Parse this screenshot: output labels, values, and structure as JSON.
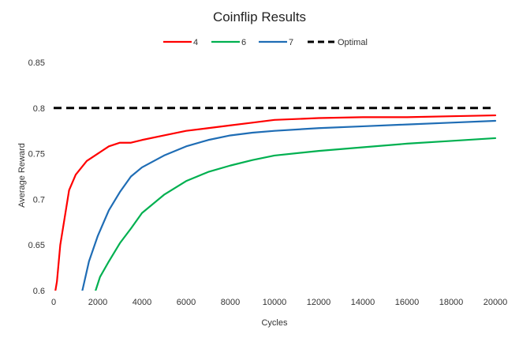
{
  "chart_data": {
    "type": "line",
    "title": "Coinflip Results",
    "xlabel": "Cycles",
    "ylabel": "Average Reward",
    "xlim": [
      0,
      20000
    ],
    "ylim": [
      0.6,
      0.85
    ],
    "x_ticks": [
      0,
      2000,
      4000,
      6000,
      8000,
      10000,
      12000,
      14000,
      16000,
      18000,
      20000
    ],
    "y_ticks": [
      0.6,
      0.65,
      0.7,
      0.75,
      0.8,
      0.85
    ],
    "y_tick_labels": [
      "0.6",
      "0.65",
      "0.7",
      "0.75",
      "0.8",
      "0.85"
    ],
    "grid": false,
    "legend_position": "top",
    "series": [
      {
        "name": "4",
        "color": "#ff0000",
        "x": [
          80,
          150,
          300,
          500,
          700,
          1000,
          1500,
          2000,
          2500,
          3000,
          3500,
          4000,
          5000,
          6000,
          7000,
          8000,
          9000,
          10000,
          12000,
          14000,
          16000,
          18000,
          20000
        ],
        "y": [
          0.6,
          0.61,
          0.65,
          0.68,
          0.71,
          0.727,
          0.742,
          0.75,
          0.758,
          0.762,
          0.762,
          0.765,
          0.77,
          0.775,
          0.778,
          0.781,
          0.784,
          0.787,
          0.789,
          0.79,
          0.79,
          0.791,
          0.792
        ]
      },
      {
        "name": "6",
        "color": "#00b050",
        "x": [
          1900,
          2100,
          2500,
          3000,
          3500,
          4000,
          5000,
          6000,
          7000,
          8000,
          9000,
          10000,
          12000,
          14000,
          16000,
          18000,
          20000
        ],
        "y": [
          0.6,
          0.615,
          0.632,
          0.652,
          0.668,
          0.685,
          0.705,
          0.72,
          0.73,
          0.737,
          0.743,
          0.748,
          0.753,
          0.757,
          0.761,
          0.764,
          0.767
        ]
      },
      {
        "name": "7",
        "color": "#1f6db5",
        "x": [
          1300,
          1600,
          2000,
          2500,
          3000,
          3500,
          4000,
          5000,
          6000,
          7000,
          8000,
          9000,
          10000,
          12000,
          14000,
          16000,
          18000,
          20000
        ],
        "y": [
          0.6,
          0.632,
          0.66,
          0.688,
          0.708,
          0.725,
          0.735,
          0.748,
          0.758,
          0.765,
          0.77,
          0.773,
          0.775,
          0.778,
          0.78,
          0.782,
          0.784,
          0.786
        ]
      },
      {
        "name": "Optimal",
        "color": "#000000",
        "dashed": true,
        "x": [
          0,
          20000
        ],
        "y": [
          0.8,
          0.8
        ]
      }
    ]
  }
}
